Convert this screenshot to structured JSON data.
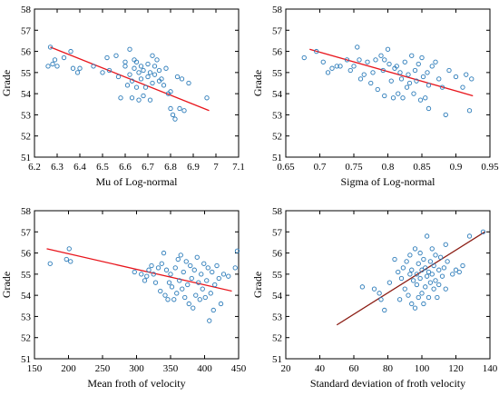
{
  "chart_data": [
    {
      "type": "scatter",
      "xlabel": "Mu of Log-normal",
      "ylabel": "Grade",
      "xlim": [
        6.2,
        7.1
      ],
      "ylim": [
        51,
        58
      ],
      "xticks": [
        "6.2",
        "6.3",
        "6.4",
        "6.5",
        "6.6",
        "6.7",
        "6.8",
        "6.9",
        "7",
        "7.1"
      ],
      "yticks": [
        "51",
        "52",
        "53",
        "54",
        "55",
        "56",
        "57",
        "58"
      ],
      "marker_color": "#2b7bb9",
      "fit_color": "#e8141b",
      "fit_line": {
        "x": [
          6.27,
          6.97
        ],
        "y": [
          56.2,
          53.2
        ]
      },
      "points": [
        [
          6.27,
          56.2
        ],
        [
          6.26,
          55.3
        ],
        [
          6.28,
          55.4
        ],
        [
          6.29,
          55.6
        ],
        [
          6.3,
          55.3
        ],
        [
          6.33,
          55.7
        ],
        [
          6.36,
          56.0
        ],
        [
          6.37,
          55.2
        ],
        [
          6.39,
          55.0
        ],
        [
          6.4,
          55.2
        ],
        [
          6.46,
          55.3
        ],
        [
          6.5,
          55.0
        ],
        [
          6.52,
          55.7
        ],
        [
          6.53,
          55.1
        ],
        [
          6.56,
          55.8
        ],
        [
          6.57,
          54.8
        ],
        [
          6.58,
          53.8
        ],
        [
          6.6,
          55.5
        ],
        [
          6.6,
          55.3
        ],
        [
          6.61,
          54.4
        ],
        [
          6.62,
          56.1
        ],
        [
          6.62,
          54.9
        ],
        [
          6.63,
          54.6
        ],
        [
          6.63,
          53.8
        ],
        [
          6.64,
          55.6
        ],
        [
          6.64,
          55.2
        ],
        [
          6.65,
          55.5
        ],
        [
          6.65,
          54.3
        ],
        [
          6.66,
          53.7
        ],
        [
          6.66,
          55.0
        ],
        [
          6.67,
          54.7
        ],
        [
          6.67,
          55.3
        ],
        [
          6.68,
          55.1
        ],
        [
          6.68,
          53.9
        ],
        [
          6.69,
          54.3
        ],
        [
          6.7,
          55.4
        ],
        [
          6.7,
          54.8
        ],
        [
          6.71,
          55.0
        ],
        [
          6.71,
          53.7
        ],
        [
          6.72,
          55.8
        ],
        [
          6.72,
          54.5
        ],
        [
          6.73,
          54.9
        ],
        [
          6.73,
          55.3
        ],
        [
          6.74,
          55.6
        ],
        [
          6.75,
          54.6
        ],
        [
          6.75,
          55.1
        ],
        [
          6.76,
          54.7
        ],
        [
          6.77,
          54.4
        ],
        [
          6.78,
          55.2
        ],
        [
          6.79,
          54.0
        ],
        [
          6.8,
          54.1
        ],
        [
          6.8,
          53.3
        ],
        [
          6.81,
          53.0
        ],
        [
          6.82,
          52.8
        ],
        [
          6.83,
          54.8
        ],
        [
          6.84,
          53.3
        ],
        [
          6.85,
          54.7
        ],
        [
          6.86,
          53.2
        ],
        [
          6.88,
          54.5
        ],
        [
          6.96,
          53.8
        ]
      ]
    },
    {
      "type": "scatter",
      "xlabel": "Sigma of Log-normal",
      "ylabel": "Grade",
      "xlim": [
        0.65,
        0.95
      ],
      "ylim": [
        51,
        58
      ],
      "xticks": [
        "0.65",
        "0.7",
        "0.75",
        "0.8",
        "0.85",
        "0.9",
        "0.95"
      ],
      "yticks": [
        "51",
        "52",
        "53",
        "54",
        "55",
        "56",
        "57",
        "58"
      ],
      "marker_color": "#2b7bb9",
      "fit_color": "#e8141b",
      "fit_line": {
        "x": [
          0.685,
          0.925
        ],
        "y": [
          56.1,
          53.9
        ]
      },
      "points": [
        [
          0.677,
          55.7
        ],
        [
          0.695,
          56.0
        ],
        [
          0.705,
          55.5
        ],
        [
          0.712,
          55.0
        ],
        [
          0.718,
          55.2
        ],
        [
          0.725,
          55.3
        ],
        [
          0.73,
          55.3
        ],
        [
          0.74,
          55.6
        ],
        [
          0.745,
          55.1
        ],
        [
          0.75,
          55.3
        ],
        [
          0.755,
          56.2
        ],
        [
          0.758,
          55.6
        ],
        [
          0.76,
          54.7
        ],
        [
          0.765,
          54.9
        ],
        [
          0.77,
          55.5
        ],
        [
          0.775,
          54.5
        ],
        [
          0.778,
          55.0
        ],
        [
          0.782,
          55.6
        ],
        [
          0.785,
          54.2
        ],
        [
          0.79,
          55.8
        ],
        [
          0.793,
          55.1
        ],
        [
          0.795,
          53.9
        ],
        [
          0.8,
          56.1
        ],
        [
          0.802,
          55.4
        ],
        [
          0.805,
          54.6
        ],
        [
          0.808,
          53.8
        ],
        [
          0.81,
          55.2
        ],
        [
          0.813,
          55.3
        ],
        [
          0.815,
          54.0
        ],
        [
          0.818,
          55.0
        ],
        [
          0.82,
          54.7
        ],
        [
          0.822,
          53.8
        ],
        [
          0.825,
          55.5
        ],
        [
          0.828,
          54.3
        ],
        [
          0.83,
          54.9
        ],
        [
          0.832,
          54.5
        ],
        [
          0.835,
          55.8
        ],
        [
          0.838,
          54.0
        ],
        [
          0.84,
          55.1
        ],
        [
          0.842,
          54.6
        ],
        [
          0.845,
          55.4
        ],
        [
          0.848,
          53.7
        ],
        [
          0.85,
          55.7
        ],
        [
          0.852,
          54.8
        ],
        [
          0.855,
          53.8
        ],
        [
          0.858,
          55.0
        ],
        [
          0.86,
          54.4
        ],
        [
          0.865,
          55.3
        ],
        [
          0.87,
          55.5
        ],
        [
          0.875,
          54.7
        ],
        [
          0.88,
          54.3
        ],
        [
          0.885,
          53.0
        ],
        [
          0.89,
          55.1
        ],
        [
          0.9,
          54.8
        ],
        [
          0.91,
          54.3
        ],
        [
          0.915,
          54.9
        ],
        [
          0.92,
          53.2
        ],
        [
          0.923,
          54.7
        ],
        [
          0.86,
          53.3
        ],
        [
          0.795,
          55.6
        ]
      ]
    },
    {
      "type": "scatter",
      "xlabel": "Mean froth of velocity",
      "ylabel": "Grade",
      "xlim": [
        150,
        450
      ],
      "ylim": [
        51,
        58
      ],
      "xticks": [
        "150",
        "200",
        "250",
        "300",
        "350",
        "400",
        "450"
      ],
      "yticks": [
        "51",
        "52",
        "53",
        "54",
        "55",
        "56",
        "57",
        "58"
      ],
      "marker_color": "#2b7bb9",
      "fit_color": "#e8141b",
      "fit_line": {
        "x": [
          168,
          440
        ],
        "y": [
          56.2,
          54.2
        ]
      },
      "points": [
        [
          173,
          55.5
        ],
        [
          197,
          55.7
        ],
        [
          201,
          56.2
        ],
        [
          203,
          55.6
        ],
        [
          297,
          55.1
        ],
        [
          307,
          55.0
        ],
        [
          312,
          54.7
        ],
        [
          315,
          54.9
        ],
        [
          318,
          55.2
        ],
        [
          322,
          55.4
        ],
        [
          325,
          55.0
        ],
        [
          328,
          54.6
        ],
        [
          332,
          55.3
        ],
        [
          335,
          54.2
        ],
        [
          337,
          55.5
        ],
        [
          340,
          56.0
        ],
        [
          342,
          54.0
        ],
        [
          344,
          55.2
        ],
        [
          346,
          53.8
        ],
        [
          348,
          54.6
        ],
        [
          350,
          55.0
        ],
        [
          352,
          54.4
        ],
        [
          355,
          53.8
        ],
        [
          357,
          55.3
        ],
        [
          359,
          54.1
        ],
        [
          361,
          55.7
        ],
        [
          363,
          54.7
        ],
        [
          365,
          55.9
        ],
        [
          367,
          54.3
        ],
        [
          369,
          55.1
        ],
        [
          371,
          53.9
        ],
        [
          373,
          55.6
        ],
        [
          375,
          54.5
        ],
        [
          377,
          53.6
        ],
        [
          379,
          55.4
        ],
        [
          381,
          54.8
        ],
        [
          383,
          53.4
        ],
        [
          385,
          55.2
        ],
        [
          387,
          54.0
        ],
        [
          389,
          55.8
        ],
        [
          391,
          54.6
        ],
        [
          393,
          53.8
        ],
        [
          395,
          55.0
        ],
        [
          397,
          54.3
        ],
        [
          399,
          55.5
        ],
        [
          401,
          53.9
        ],
        [
          403,
          54.7
        ],
        [
          405,
          55.3
        ],
        [
          407,
          52.8
        ],
        [
          409,
          54.1
        ],
        [
          411,
          55.1
        ],
        [
          413,
          53.3
        ],
        [
          415,
          54.5
        ],
        [
          418,
          55.4
        ],
        [
          421,
          54.8
        ],
        [
          424,
          53.6
        ],
        [
          428,
          55.0
        ],
        [
          435,
          54.9
        ],
        [
          445,
          55.3
        ],
        [
          448,
          56.1
        ]
      ]
    },
    {
      "type": "scatter",
      "xlabel": "Standard deviation of froth velocity",
      "ylabel": "Grade",
      "xlim": [
        20,
        140
      ],
      "ylim": [
        51,
        58
      ],
      "xticks": [
        "20",
        "40",
        "60",
        "80",
        "100",
        "120",
        "140"
      ],
      "yticks": [
        "51",
        "52",
        "53",
        "54",
        "55",
        "56",
        "57",
        "58"
      ],
      "marker_color": "#2b7bb9",
      "fit_color": "#8b1c13",
      "fit_line": {
        "x": [
          50,
          137
        ],
        "y": [
          52.6,
          57.0
        ]
      },
      "points": [
        [
          65,
          54.4
        ],
        [
          72,
          54.3
        ],
        [
          75,
          54.1
        ],
        [
          76,
          53.8
        ],
        [
          78,
          53.3
        ],
        [
          81,
          54.6
        ],
        [
          84,
          55.7
        ],
        [
          86,
          55.1
        ],
        [
          87,
          53.8
        ],
        [
          88,
          54.8
        ],
        [
          89,
          55.3
        ],
        [
          90,
          54.3
        ],
        [
          91,
          55.6
        ],
        [
          92,
          54.0
        ],
        [
          93,
          55.9
        ],
        [
          94,
          53.6
        ],
        [
          94,
          55.2
        ],
        [
          95,
          54.7
        ],
        [
          96,
          56.2
        ],
        [
          96,
          53.4
        ],
        [
          97,
          55.0
        ],
        [
          97,
          54.5
        ],
        [
          98,
          55.5
        ],
        [
          98,
          53.9
        ],
        [
          99,
          56.0
        ],
        [
          99,
          54.8
        ],
        [
          100,
          55.2
        ],
        [
          100,
          54.1
        ],
        [
          101,
          55.7
        ],
        [
          101,
          53.6
        ],
        [
          102,
          55.3
        ],
        [
          102,
          54.4
        ],
        [
          103,
          56.8
        ],
        [
          103,
          54.9
        ],
        [
          104,
          55.1
        ],
        [
          104,
          53.9
        ],
        [
          105,
          55.6
        ],
        [
          105,
          54.6
        ],
        [
          106,
          56.2
        ],
        [
          106,
          55.0
        ],
        [
          107,
          54.3
        ],
        [
          107,
          55.4
        ],
        [
          108,
          55.9
        ],
        [
          108,
          54.7
        ],
        [
          109,
          53.9
        ],
        [
          110,
          55.2
        ],
        [
          110,
          54.5
        ],
        [
          111,
          55.8
        ],
        [
          112,
          54.9
        ],
        [
          113,
          55.3
        ],
        [
          114,
          54.3
        ],
        [
          115,
          55.6
        ],
        [
          118,
          55.0
        ],
        [
          120,
          55.2
        ],
        [
          122,
          55.1
        ],
        [
          124,
          55.4
        ],
        [
          128,
          56.8
        ],
        [
          136,
          57.0
        ],
        [
          114,
          56.4
        ],
        [
          93,
          55.0
        ]
      ]
    }
  ]
}
